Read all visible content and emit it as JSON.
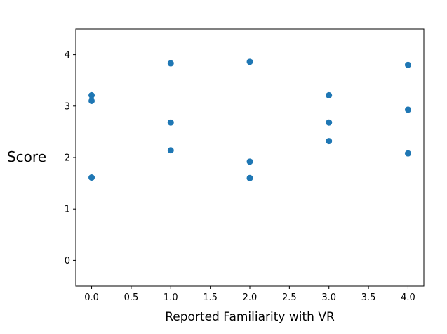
{
  "chart_data": {
    "type": "scatter",
    "title": "",
    "xlabel": "Reported Familiarity with VR",
    "ylabel": "Score",
    "xlim": [
      -0.2,
      4.2
    ],
    "ylim": [
      -0.5,
      4.5
    ],
    "xticks": [
      "0.0",
      "0.5",
      "1.0",
      "1.5",
      "2.0",
      "2.5",
      "3.0",
      "3.5",
      "4.0"
    ],
    "xtick_values": [
      0,
      0.5,
      1,
      1.5,
      2,
      2.5,
      3,
      3.5,
      4
    ],
    "yticks": [
      "0",
      "1",
      "2",
      "3",
      "4"
    ],
    "ytick_values": [
      0,
      1,
      2,
      3,
      4
    ],
    "grid": false,
    "marker_color": "#1f77b4",
    "series": [
      {
        "points": [
          {
            "x": 0,
            "y": 3.21
          },
          {
            "x": 0,
            "y": 3.1
          },
          {
            "x": 0,
            "y": 1.61
          },
          {
            "x": 1,
            "y": 3.83
          },
          {
            "x": 1,
            "y": 2.68
          },
          {
            "x": 1,
            "y": 2.14
          },
          {
            "x": 2,
            "y": 3.86
          },
          {
            "x": 2,
            "y": 1.92
          },
          {
            "x": 2,
            "y": 1.6
          },
          {
            "x": 3,
            "y": 3.21
          },
          {
            "x": 3,
            "y": 2.68
          },
          {
            "x": 3,
            "y": 2.32
          },
          {
            "x": 4,
            "y": 3.8
          },
          {
            "x": 4,
            "y": 2.93
          },
          {
            "x": 4,
            "y": 2.08
          }
        ]
      }
    ]
  }
}
